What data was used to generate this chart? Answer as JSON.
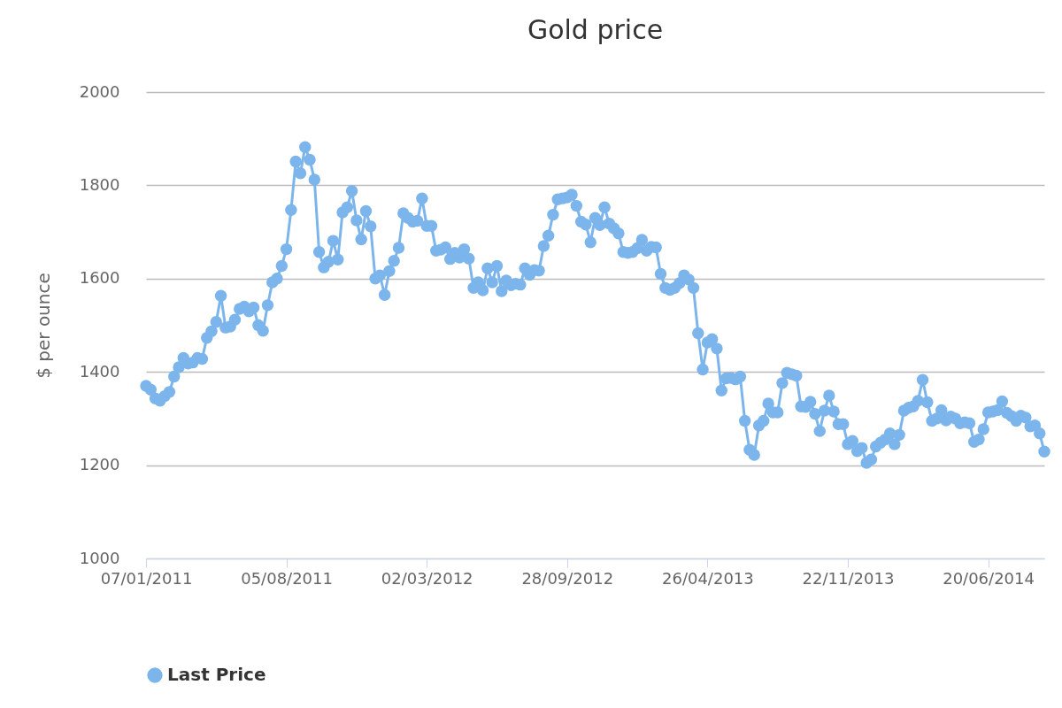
{
  "chart_data": {
    "type": "line",
    "title": "Gold price",
    "ylabel": "$ per ounce",
    "x": [
      "2011-01-07",
      "2011-01-14",
      "2011-01-21",
      "2011-01-28",
      "2011-02-04",
      "2011-02-11",
      "2011-02-18",
      "2011-02-25",
      "2011-03-04",
      "2011-03-11",
      "2011-03-18",
      "2011-03-25",
      "2011-04-01",
      "2011-04-08",
      "2011-04-15",
      "2011-04-22",
      "2011-04-29",
      "2011-05-06",
      "2011-05-13",
      "2011-05-20",
      "2011-05-27",
      "2011-06-03",
      "2011-06-10",
      "2011-06-17",
      "2011-06-24",
      "2011-07-01",
      "2011-07-08",
      "2011-07-15",
      "2011-07-22",
      "2011-07-29",
      "2011-08-05",
      "2011-08-12",
      "2011-08-19",
      "2011-08-26",
      "2011-09-02",
      "2011-09-09",
      "2011-09-16",
      "2011-09-23",
      "2011-09-30",
      "2011-10-07",
      "2011-10-14",
      "2011-10-21",
      "2011-10-28",
      "2011-11-04",
      "2011-11-11",
      "2011-11-18",
      "2011-11-25",
      "2011-12-02",
      "2011-12-09",
      "2011-12-16",
      "2011-12-23",
      "2011-12-30",
      "2012-01-06",
      "2012-01-13",
      "2012-01-20",
      "2012-01-27",
      "2012-02-03",
      "2012-02-10",
      "2012-02-17",
      "2012-02-24",
      "2012-03-02",
      "2012-03-09",
      "2012-03-16",
      "2012-03-23",
      "2012-03-30",
      "2012-04-06",
      "2012-04-13",
      "2012-04-20",
      "2012-04-27",
      "2012-05-04",
      "2012-05-11",
      "2012-05-18",
      "2012-05-25",
      "2012-06-01",
      "2012-06-08",
      "2012-06-15",
      "2012-06-22",
      "2012-06-29",
      "2012-07-06",
      "2012-07-13",
      "2012-07-20",
      "2012-07-27",
      "2012-08-03",
      "2012-08-10",
      "2012-08-17",
      "2012-08-24",
      "2012-08-31",
      "2012-09-07",
      "2012-09-14",
      "2012-09-21",
      "2012-09-28",
      "2012-10-05",
      "2012-10-12",
      "2012-10-19",
      "2012-10-26",
      "2012-11-02",
      "2012-11-09",
      "2012-11-16",
      "2012-11-23",
      "2012-11-30",
      "2012-12-07",
      "2012-12-14",
      "2012-12-21",
      "2012-12-28",
      "2013-01-04",
      "2013-01-11",
      "2013-01-18",
      "2013-01-25",
      "2013-02-01",
      "2013-02-08",
      "2013-02-15",
      "2013-02-22",
      "2013-03-01",
      "2013-03-08",
      "2013-03-15",
      "2013-03-22",
      "2013-03-29",
      "2013-04-05",
      "2013-04-12",
      "2013-04-19",
      "2013-04-26",
      "2013-05-03",
      "2013-05-10",
      "2013-05-17",
      "2013-05-24",
      "2013-05-31",
      "2013-06-07",
      "2013-06-14",
      "2013-06-21",
      "2013-06-28",
      "2013-07-05",
      "2013-07-12",
      "2013-07-19",
      "2013-07-26",
      "2013-08-02",
      "2013-08-09",
      "2013-08-16",
      "2013-08-23",
      "2013-08-30",
      "2013-09-06",
      "2013-09-13",
      "2013-09-20",
      "2013-09-27",
      "2013-10-04",
      "2013-10-11",
      "2013-10-18",
      "2013-10-25",
      "2013-11-01",
      "2013-11-08",
      "2013-11-15",
      "2013-11-22",
      "2013-11-29",
      "2013-12-06",
      "2013-12-13",
      "2013-12-20",
      "2013-12-27",
      "2014-01-03",
      "2014-01-10",
      "2014-01-17",
      "2014-01-24",
      "2014-01-31",
      "2014-02-07",
      "2014-02-14",
      "2014-02-21",
      "2014-02-28",
      "2014-03-07",
      "2014-03-14",
      "2014-03-21",
      "2014-03-28",
      "2014-04-04",
      "2014-04-11",
      "2014-04-18",
      "2014-04-25",
      "2014-05-02",
      "2014-05-09",
      "2014-05-16",
      "2014-05-23",
      "2014-05-30",
      "2014-06-06",
      "2014-06-13",
      "2014-06-20",
      "2014-06-27",
      "2014-07-04",
      "2014-07-11",
      "2014-07-18",
      "2014-07-25",
      "2014-08-01",
      "2014-08-08",
      "2014-08-15",
      "2014-08-22",
      "2014-08-29",
      "2014-09-05",
      "2014-09-12"
    ],
    "series": [
      {
        "name": "Last Price",
        "color": "#7cb5ec",
        "values": [
          1370,
          1362,
          1343,
          1338,
          1348,
          1357,
          1390,
          1410,
          1430,
          1418,
          1420,
          1430,
          1428,
          1473,
          1487,
          1507,
          1563,
          1495,
          1497,
          1512,
          1535,
          1540,
          1530,
          1538,
          1500,
          1488,
          1543,
          1592,
          1600,
          1627,
          1663,
          1747,
          1851,
          1826,
          1882,
          1855,
          1812,
          1657,
          1624,
          1636,
          1681,
          1641,
          1742,
          1753,
          1788,
          1725,
          1684,
          1745,
          1712,
          1600,
          1607,
          1565,
          1616,
          1638,
          1666,
          1740,
          1730,
          1722,
          1724,
          1772,
          1713,
          1713,
          1660,
          1662,
          1667,
          1642,
          1655,
          1645,
          1663,
          1643,
          1580,
          1592,
          1575,
          1622,
          1592,
          1627,
          1573,
          1596,
          1586,
          1589,
          1587,
          1622,
          1608,
          1618,
          1617,
          1670,
          1692,
          1737,
          1770,
          1772,
          1774,
          1780,
          1756,
          1722,
          1716,
          1678,
          1730,
          1715,
          1753,
          1718,
          1708,
          1697,
          1657,
          1655,
          1657,
          1665,
          1683,
          1660,
          1668,
          1667,
          1610,
          1580,
          1576,
          1580,
          1590,
          1607,
          1598,
          1580,
          1483,
          1405,
          1463,
          1470,
          1450,
          1360,
          1386,
          1387,
          1384,
          1390,
          1295,
          1233,
          1222,
          1285,
          1295,
          1332,
          1313,
          1313,
          1376,
          1398,
          1395,
          1392,
          1326,
          1325,
          1336,
          1310,
          1273,
          1317,
          1349,
          1315,
          1288,
          1288,
          1245,
          1252,
          1230,
          1237,
          1205,
          1212,
          1240,
          1248,
          1255,
          1268,
          1245,
          1265,
          1317,
          1323,
          1326,
          1338,
          1383,
          1335,
          1295,
          1300,
          1318,
          1296,
          1304,
          1300,
          1290,
          1292,
          1290,
          1250,
          1255,
          1277,
          1313,
          1315,
          1318,
          1337,
          1312,
          1305,
          1295,
          1306,
          1302,
          1283,
          1285,
          1268,
          1229
        ]
      }
    ],
    "xlim": [
      "2011-01-07",
      "2014-09-12"
    ],
    "xticks": [
      {
        "value": "2011-01-07",
        "label": "07/01/2011"
      },
      {
        "value": "2011-08-05",
        "label": "05/08/2011"
      },
      {
        "value": "2012-03-02",
        "label": "02/03/2012"
      },
      {
        "value": "2012-09-28",
        "label": "28/09/2012"
      },
      {
        "value": "2013-04-26",
        "label": "26/04/2013"
      },
      {
        "value": "2013-11-22",
        "label": "22/11/2013"
      },
      {
        "value": "2014-06-20",
        "label": "20/06/2014"
      }
    ],
    "ylim": [
      1000,
      2000
    ],
    "yticks": [
      1000,
      1200,
      1400,
      1600,
      1800,
      2000
    ],
    "grid": "y",
    "legend": "bottom",
    "marker": "circle",
    "line_style": "solid"
  }
}
